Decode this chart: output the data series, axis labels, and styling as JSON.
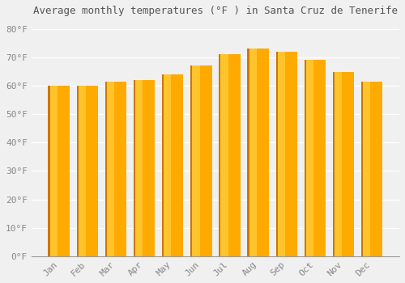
{
  "title": "Average monthly temperatures (°F ) in Santa Cruz de Tenerife",
  "months": [
    "Jan",
    "Feb",
    "Mar",
    "Apr",
    "May",
    "Jun",
    "Jul",
    "Aug",
    "Sep",
    "Oct",
    "Nov",
    "Dec"
  ],
  "values": [
    60,
    60,
    61.5,
    62,
    64,
    67,
    71,
    73,
    72,
    69,
    65,
    61.5
  ],
  "bar_color_main": "#FFAA00",
  "bar_color_left": "#CC7700",
  "bar_color_bright": "#FFD040",
  "background_color": "#f0f0f0",
  "grid_color": "#ffffff",
  "ytick_labels": [
    "0°F",
    "10°F",
    "20°F",
    "30°F",
    "40°F",
    "50°F",
    "60°F",
    "70°F",
    "80°F"
  ],
  "ytick_values": [
    0,
    10,
    20,
    30,
    40,
    50,
    60,
    70,
    80
  ],
  "ylim": [
    0,
    83
  ],
  "title_fontsize": 9,
  "tick_fontsize": 8,
  "tick_color": "#888888",
  "title_color": "#555555",
  "font_family": "monospace",
  "bar_width": 0.75,
  "spine_color": "#999999"
}
